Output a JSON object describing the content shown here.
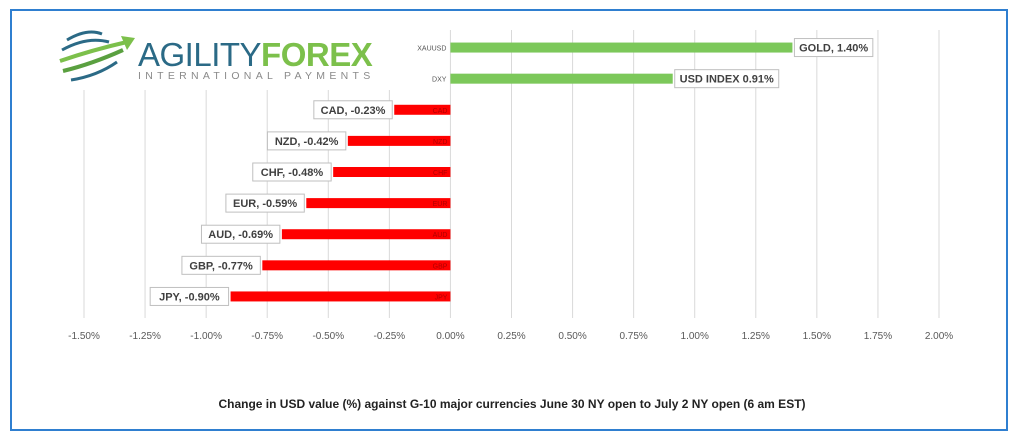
{
  "logo": {
    "name_part1": "AGILITY",
    "name_part2": "FOREX",
    "tagline": "INTERNATIONAL PAYMENTS"
  },
  "chart_data": {
    "type": "bar",
    "orientation": "horizontal",
    "title": "Change in  USD value (%)  against  G-10 major currencies  June 30 NY open to  July 2 NY open  (6 am EST)",
    "categories": [
      "XAUUSD",
      "DXY",
      "CAD",
      "NZD",
      "CHF",
      "EUR",
      "AUD",
      "GBP",
      "JPY"
    ],
    "values": [
      1.4,
      0.91,
      -0.23,
      -0.42,
      -0.48,
      -0.59,
      -0.69,
      -0.77,
      -0.9
    ],
    "data_labels": [
      "GOLD, 1.40%",
      "USD INDEX 0.91%",
      "CAD, -0.23%",
      "NZD, -0.42%",
      "CHF, -0.48%",
      "EUR, -0.59%",
      "AUD, -0.69%",
      "GBP, -0.77%",
      "JPY, -0.90%"
    ],
    "xlim": [
      -1.5,
      2.0
    ],
    "xticks": [
      -1.5,
      -1.25,
      -1.0,
      -0.75,
      -0.5,
      -0.25,
      0,
      0.25,
      0.5,
      0.75,
      1.0,
      1.25,
      1.5,
      1.75,
      2.0
    ],
    "xtick_labels": [
      "-1.50%",
      "-1.25%",
      "-1.00%",
      "-0.75%",
      "-0.50%",
      "-0.25%",
      "0.00%",
      "0.25%",
      "0.50%",
      "0.75%",
      "1.00%",
      "1.25%",
      "1.50%",
      "1.75%",
      "2.00%"
    ],
    "grid": true,
    "colors": {
      "positive": "#7cc85a",
      "negative": "#ff0000"
    }
  }
}
